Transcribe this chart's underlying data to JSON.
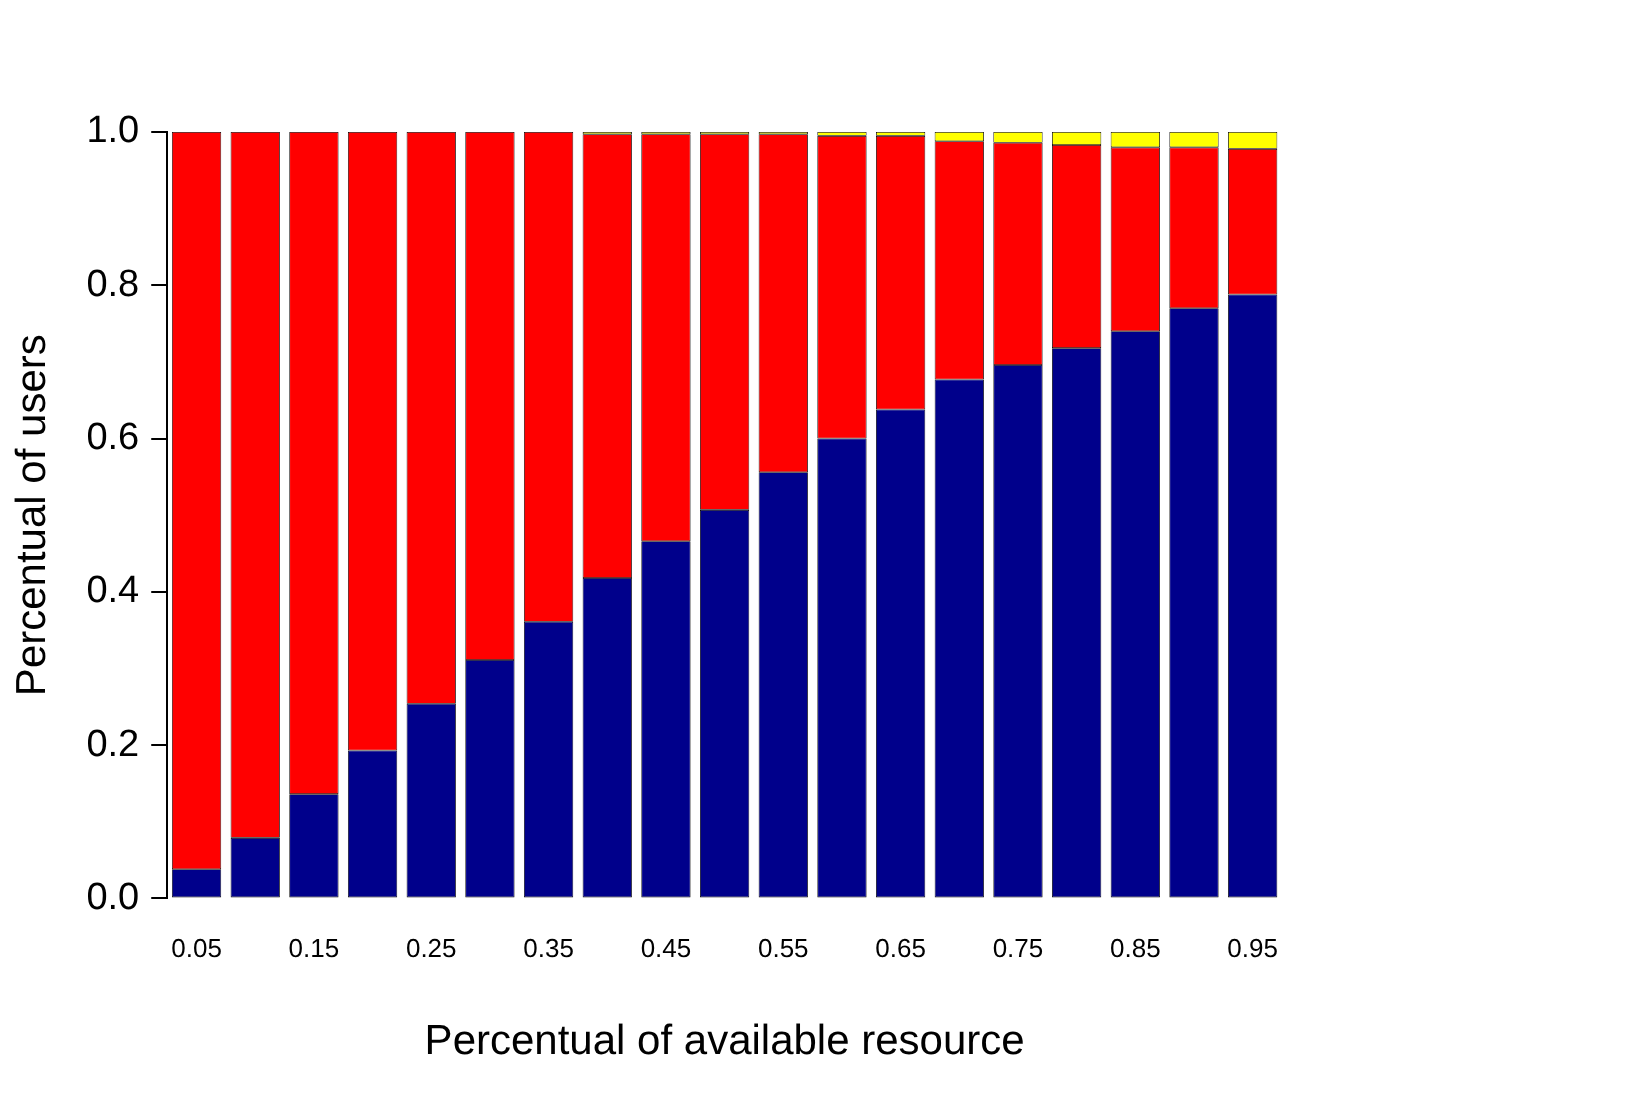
{
  "chart_data": {
    "type": "bar",
    "stacked": true,
    "xlabel": "Percentual of available resource",
    "ylabel": "Percentual of users",
    "categories": [
      "0.05",
      null,
      "0.15",
      null,
      "0.25",
      null,
      "0.35",
      null,
      "0.45",
      null,
      "0.55",
      null,
      "0.65",
      null,
      "0.75",
      null,
      "0.85",
      null,
      "0.95"
    ],
    "series": [
      {
        "color": "#00008b",
        "values": [
          0.038,
          0.079,
          0.136,
          0.193,
          0.254,
          0.311,
          0.361,
          0.418,
          0.466,
          0.507,
          0.556,
          0.6,
          0.638,
          0.677,
          0.696,
          0.718,
          0.74,
          0.77,
          0.788
        ]
      },
      {
        "color": "#ff0000",
        "values": [
          0.962,
          0.921,
          0.864,
          0.807,
          0.746,
          0.689,
          0.639,
          0.579,
          0.531,
          0.49,
          0.441,
          0.395,
          0.357,
          0.311,
          0.29,
          0.265,
          0.24,
          0.21,
          0.19
        ]
      },
      {
        "color": "#ffff00",
        "values": [
          0,
          0,
          0,
          0,
          0,
          0,
          0,
          0.003,
          0.003,
          0.003,
          0.003,
          0.005,
          0.005,
          0.012,
          0.014,
          0.017,
          0.02,
          0.02,
          0.022
        ]
      }
    ],
    "ylim": [
      0,
      1
    ],
    "yticks": [
      {
        "value": 0,
        "label": "0.0"
      },
      0.2,
      0.4,
      0.6,
      0.8,
      {
        "value": 1,
        "label": "1.0"
      }
    ],
    "grid": false,
    "legend": false
  }
}
